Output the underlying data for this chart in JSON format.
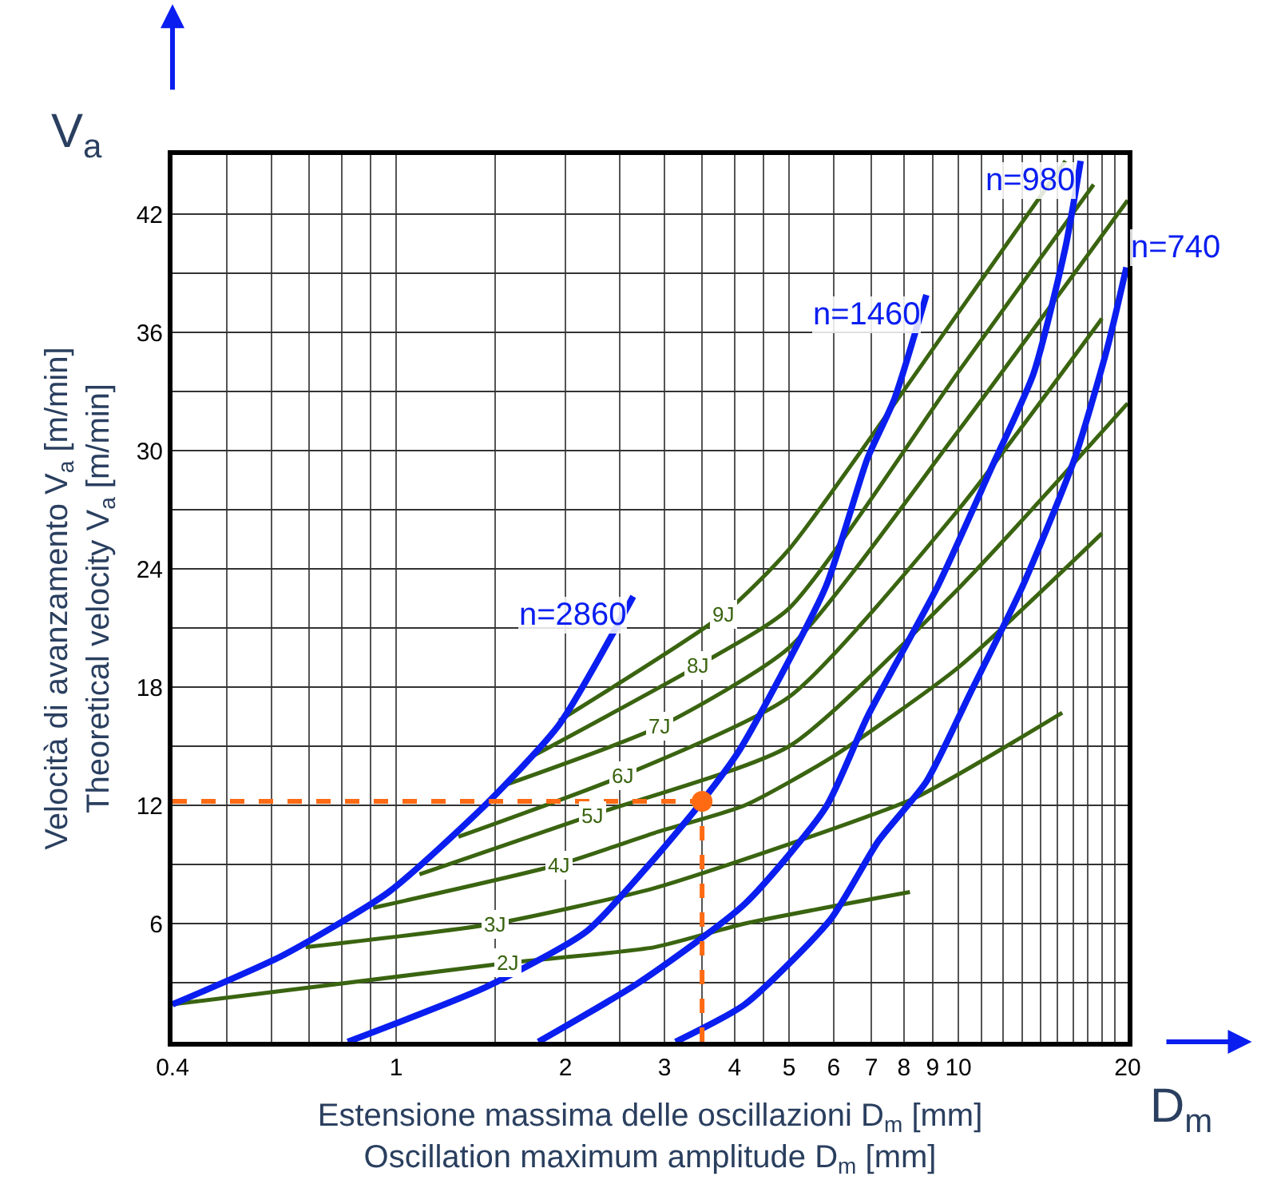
{
  "chart_data": {
    "type": "line",
    "xlabel": "Estensione massima delle oscillazioni D$_{m}$ [mm]\nOscillation maximum amplitude D$_{m}$ [mm]",
    "ylabel": "Velocità di avanzamento V$_{a}$ [m/min]\nTheoretical velocity V$_{a}$ [m/min]",
    "log": "x",
    "grid": true,
    "xlim": [
      0.4,
      20
    ],
    "xticks": [
      0.4,
      {
        "value": 0.5,
        "label": null
      },
      {
        "value": 0.6,
        "label": null
      },
      {
        "value": 0.7,
        "label": null
      },
      {
        "value": 0.8,
        "label": null
      },
      {
        "value": 0.9,
        "label": null
      },
      1,
      {
        "value": 1.5,
        "label": null
      },
      2,
      {
        "value": 2.5,
        "label": null
      },
      3,
      {
        "value": 3.5,
        "label": null
      },
      4,
      {
        "value": 4.5,
        "label": null
      },
      5,
      6,
      7,
      8,
      9,
      10,
      {
        "value": 11,
        "label": null
      },
      {
        "value": 12,
        "label": null
      },
      {
        "value": 13,
        "label": null
      },
      {
        "value": 14,
        "label": null
      },
      {
        "value": 15,
        "label": null
      },
      {
        "value": 16,
        "label": null
      },
      {
        "value": 17,
        "label": null
      },
      {
        "value": 18,
        "label": null
      },
      {
        "value": 19,
        "label": null
      },
      20
    ],
    "ylim": [
      0,
      45
    ],
    "yticks": [
      {
        "value": 3,
        "label": null
      },
      6,
      {
        "value": 9,
        "label": null
      },
      12,
      {
        "value": 15,
        "label": null
      },
      18,
      {
        "value": 21,
        "label": null
      },
      24,
      {
        "value": 27,
        "label": null
      },
      30,
      {
        "value": 33,
        "label": null
      },
      36,
      {
        "value": 39,
        "label": null
      },
      42
    ],
    "series": [
      {
        "name": "2J",
        "color": "#3a6410",
        "x": [
          0.4,
          1.58,
          2.88,
          4.17,
          8.2
        ],
        "values": [
          1.9,
          4.0,
          4.8,
          6.0,
          7.6
        ]
      },
      {
        "name": "3J",
        "color": "#3a6410",
        "x": [
          0.69,
          1.5,
          2.88,
          5.2,
          8.4,
          15.3
        ],
        "values": [
          4.8,
          6.0,
          7.8,
          10.2,
          12.4,
          16.7
        ]
      },
      {
        "name": "4J",
        "color": "#3a6410",
        "x": [
          0.91,
          1.95,
          2.88,
          4.17,
          6,
          10,
          18
        ],
        "values": [
          6.8,
          9.0,
          10.6,
          12.0,
          14.5,
          19.0,
          25.8
        ]
      },
      {
        "name": "5J",
        "color": "#3a6410",
        "x": [
          1.1,
          2.23,
          5,
          10,
          20
        ],
        "values": [
          8.5,
          11.5,
          15.0,
          23.0,
          32.4
        ]
      },
      {
        "name": "6J",
        "color": "#3a6410",
        "x": [
          1.29,
          2.53,
          5,
          10,
          18
        ],
        "values": [
          10.4,
          13.5,
          17.5,
          27.0,
          36.7
        ]
      },
      {
        "name": "7J",
        "color": "#3a6410",
        "x": [
          1.55,
          2.94,
          5,
          10,
          20
        ],
        "values": [
          13.0,
          16.0,
          20.0,
          31.0,
          42.7
        ]
      },
      {
        "name": "8J",
        "color": "#3a6410",
        "x": [
          1.75,
          3.45,
          5,
          10,
          17.4
        ],
        "values": [
          14.5,
          19.1,
          22.0,
          34.0,
          43.5
        ]
      },
      {
        "name": "9J",
        "color": "#3a6410",
        "x": [
          1.95,
          3.82,
          5,
          10,
          15.5
        ],
        "values": [
          16.3,
          21.7,
          25.0,
          37.0,
          44.7
        ]
      },
      {
        "name": "n=2860",
        "color": "#0a1ef0",
        "x": [
          0.4,
          0.63,
          0.97,
          1.45,
          1.95,
          2.64
        ],
        "values": [
          1.9,
          4.4,
          7.6,
          12.1,
          16.1,
          22.6
        ]
      },
      {
        "name": "n=1460",
        "color": "#0a1ef0",
        "x": [
          0.82,
          1.45,
          2.18,
          2.88,
          3.5,
          4.08,
          5.81,
          6.89,
          7.69,
          8.77
        ],
        "values": [
          0,
          2.8,
          5.6,
          9.3,
          12.2,
          14.8,
          23.1,
          29.6,
          32.6,
          37.9
        ]
      },
      {
        "name": "n=980",
        "color": "#0a1ef0",
        "x": [
          1.79,
          2.7,
          4.17,
          5.81,
          6.89,
          9.18,
          11.4,
          13.6,
          15.5,
          16.5
        ],
        "values": [
          0,
          3.0,
          7.0,
          11.9,
          16.5,
          23.1,
          29.0,
          33.9,
          40.3,
          44.7
        ]
      },
      {
        "name": "n=740",
        "color": "#0a1ef0",
        "x": [
          3.14,
          4.17,
          5.92,
          7.21,
          8.77,
          10.5,
          13.0,
          16.1,
          18.4,
          19.9
        ],
        "values": [
          0,
          1.9,
          6.2,
          10.2,
          13.2,
          17.7,
          23.1,
          29.6,
          35.2,
          39.3
        ]
      },
      {
        "type": "scatter",
        "color": "#ff6a13",
        "x": [
          3.5
        ],
        "values": [
          12.2
        ]
      }
    ],
    "ref_lines": [
      {
        "axis": "y",
        "value": 12.2,
        "color": "#ff6a13",
        "line_style": "dashed"
      },
      {
        "axis": "x",
        "value": 3.5,
        "color": "#ff6a13",
        "line_style": "dashed"
      }
    ],
    "annotations": [
      "V$_{a}$",
      "D$_{m}$"
    ]
  }
}
